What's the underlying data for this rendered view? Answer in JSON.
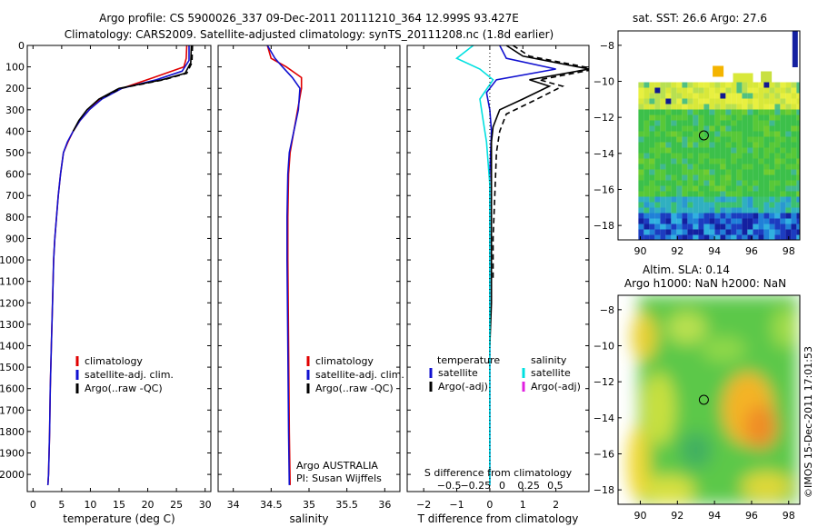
{
  "header": {
    "line1": "Argo profile: CS 5900026_337 09-Dec-2011 20111210_364 12.999S 93.427E",
    "line2": "Climatology: CARS2009. Satellite-adjusted climatology: synTS_20111208.nc (1.8d earlier)"
  },
  "colors": {
    "climatology": "#e00000",
    "satellite": "#1010d0",
    "argo": "#000000",
    "salinity_sat": "#00e0e0",
    "salinity_argo": "#e020e0"
  },
  "chart_data": [
    {
      "type": "line",
      "id": "temperature",
      "xlabel": "temperature (deg C)",
      "ylabel": "",
      "xlim": [
        -1,
        31
      ],
      "ylim": [
        2080,
        0
      ],
      "x_ticks": [
        0,
        5,
        10,
        15,
        20,
        25,
        30
      ],
      "y_ticks": [
        0,
        100,
        200,
        300,
        400,
        500,
        600,
        700,
        800,
        900,
        1000,
        1100,
        1200,
        1300,
        1400,
        1500,
        1600,
        1700,
        1800,
        1900,
        2000
      ],
      "legend": [
        "climatology",
        "satellite-adj. clim.",
        "Argo(..raw -QC)"
      ],
      "legend_position": "lower-center",
      "series": [
        {
          "name": "climatology",
          "color": "#e00000",
          "dash": false,
          "x": [
            26.8,
            26.7,
            26.3,
            21.0,
            15.5,
            11.8,
            9.8,
            8.2,
            7.0,
            6.1,
            5.3,
            4.8,
            4.4,
            4.1,
            3.8,
            3.6,
            3.4,
            3.2,
            3.0,
            2.9,
            2.8,
            2.7,
            2.6
          ],
          "y": [
            0,
            60,
            100,
            150,
            200,
            250,
            300,
            350,
            400,
            450,
            500,
            600,
            700,
            800,
            900,
            1000,
            1200,
            1400,
            1600,
            1800,
            1900,
            2000,
            2050
          ]
        },
        {
          "name": "satellite-adj. clim.",
          "color": "#1010d0",
          "dash": false,
          "x": [
            27.2,
            27.2,
            26.0,
            21.5,
            15.5,
            12.0,
            9.8,
            8.2,
            7.0,
            6.0,
            5.3,
            4.8,
            4.4,
            4.1,
            3.8,
            3.6,
            3.4,
            3.2,
            3.0,
            2.9,
            2.8,
            2.7,
            2.6
          ],
          "y": [
            0,
            70,
            120,
            160,
            200,
            250,
            300,
            350,
            400,
            450,
            500,
            600,
            700,
            800,
            900,
            1000,
            1200,
            1400,
            1600,
            1800,
            1900,
            2000,
            2050
          ]
        },
        {
          "name": "Argo(..raw -QC)",
          "color": "#000000",
          "dash": false,
          "x": [
            27.6,
            27.5,
            26.5,
            22.5,
            15.0,
            11.5,
            9.4,
            8.0,
            7.0
          ],
          "y": [
            0,
            80,
            130,
            160,
            200,
            250,
            300,
            350,
            400
          ]
        },
        {
          "name": "Argo raw",
          "color": "#000000",
          "dash": true,
          "x": [
            27.8,
            27.7,
            26.8,
            22.8,
            15.3,
            11.8
          ],
          "y": [
            0,
            80,
            130,
            160,
            200,
            250
          ]
        }
      ]
    },
    {
      "type": "line",
      "id": "salinity",
      "xlabel": "salinity",
      "ylabel": "",
      "xlim": [
        33.8,
        36.2
      ],
      "ylim": [
        2080,
        0
      ],
      "x_ticks": [
        34,
        34.5,
        35,
        35.5,
        36
      ],
      "x_tick_labels": [
        "34",
        "34.5",
        "35",
        "35.5",
        "36"
      ],
      "legend": [
        "climatology",
        "satellite-adj. clim.",
        "Argo(..raw -QC)"
      ],
      "legend_position": "lower-right",
      "annotation": [
        "Argo AUSTRALIA",
        "PI: Susan Wijffels"
      ],
      "series": [
        {
          "name": "climatology",
          "color": "#e00000",
          "dash": false,
          "x": [
            34.45,
            34.5,
            34.7,
            34.9,
            34.9,
            34.85,
            34.8,
            34.75,
            34.73,
            34.72,
            34.72,
            34.73,
            34.74,
            34.75
          ],
          "y": [
            0,
            60,
            100,
            150,
            200,
            300,
            400,
            500,
            600,
            800,
            1000,
            1400,
            1800,
            2050
          ]
        },
        {
          "name": "satellite-adj. clim.",
          "color": "#1010d0",
          "dash": false,
          "x": [
            34.45,
            34.55,
            34.65,
            34.78,
            34.88,
            34.86,
            34.8,
            34.74,
            34.72,
            34.71,
            34.71,
            34.72,
            34.73,
            34.74
          ],
          "y": [
            0,
            60,
            100,
            150,
            200,
            300,
            400,
            500,
            600,
            800,
            1000,
            1400,
            1800,
            2050
          ]
        }
      ]
    },
    {
      "type": "line",
      "id": "difference",
      "xlabel": "T difference from climatology",
      "xlabel_top": "S difference from climatology",
      "ylabel": "",
      "xlim": [
        -2.5,
        3
      ],
      "ylim": [
        2080,
        0
      ],
      "x_ticks": [
        -2,
        -1,
        0,
        1,
        2
      ],
      "x_tick_labels": [
        "−2",
        "−1",
        "0",
        "1",
        "2"
      ],
      "s_ticks": [
        -0.5,
        -0.25,
        0,
        0.25,
        0.5
      ],
      "s_tick_labels": [
        "−0.5",
        "−0.25",
        "0",
        "0.25",
        "0.5"
      ],
      "legend_left_title": "temperature",
      "legend_right_title": "salinity",
      "legend_left": [
        "satellite",
        "Argo(-adj)"
      ],
      "legend_right": [
        "satellite",
        "Argo(-adj)"
      ],
      "series": [
        {
          "name": "T satellite",
          "color": "#1010d0",
          "dash": false,
          "x": [
            0.3,
            0.5,
            2.0,
            0.2,
            -0.1,
            0.0,
            0.05,
            0.0,
            0.0,
            0.0,
            0.0,
            0.0,
            0.0
          ],
          "y": [
            0,
            60,
            110,
            160,
            220,
            300,
            400,
            600,
            900,
            1200,
            1500,
            1800,
            2050
          ]
        },
        {
          "name": "T Argo(-adj)",
          "color": "#000000",
          "dash": false,
          "x": [
            0.5,
            1.0,
            3.0,
            1.2,
            1.8,
            1.0,
            0.3,
            0.1,
            0.05,
            0.05,
            0.05,
            0.05,
            0.05,
            0.0
          ],
          "y": [
            0,
            50,
            110,
            160,
            190,
            250,
            300,
            380,
            450,
            600,
            800,
            1000,
            1200,
            1400
          ]
        },
        {
          "name": "T Argo raw",
          "color": "#000000",
          "dash": true,
          "x": [
            0.7,
            1.2,
            3.2,
            1.5,
            2.2,
            1.3,
            0.5,
            0.3,
            0.2,
            0.15,
            0.1,
            0.1
          ],
          "y": [
            0,
            50,
            110,
            160,
            190,
            260,
            320,
            400,
            500,
            700,
            900,
            1100
          ]
        },
        {
          "name": "S satellite",
          "color": "#00e0e0",
          "dash": false,
          "x": [
            -0.5,
            -1.0,
            -0.3,
            0.1,
            -0.3,
            -0.2,
            -0.1,
            -0.05,
            0.0,
            0.0,
            0.0,
            0.0,
            0.0,
            0.0
          ],
          "y": [
            0,
            60,
            110,
            160,
            250,
            350,
            450,
            550,
            650,
            800,
            1000,
            1400,
            1800,
            2050
          ]
        }
      ]
    },
    {
      "type": "heatmap",
      "id": "sst-map",
      "title": "sat. SST: 26.6  Argo: 27.6",
      "x_ticks": [
        90,
        92,
        94,
        96,
        98
      ],
      "y_ticks": [
        -8,
        -10,
        -12,
        -14,
        -16,
        -18
      ],
      "xlim": [
        88.8,
        98.6
      ],
      "ylim": [
        -18.8,
        -7.2
      ],
      "argo_position": [
        93.427,
        -12.999
      ]
    },
    {
      "type": "heatmap",
      "id": "sla-map",
      "title": [
        "Altim. SLA: 0.14",
        "Argo h1000: NaN h2000: NaN"
      ],
      "x_ticks": [
        90,
        92,
        94,
        96,
        98
      ],
      "y_ticks": [
        -8,
        -10,
        -12,
        -14,
        -16,
        -18
      ],
      "xlim": [
        88.8,
        98.6
      ],
      "ylim": [
        -18.8,
        -7.2
      ],
      "argo_position": [
        93.427,
        -12.999
      ]
    }
  ],
  "footer": {
    "credit": "©IMOS 15-Dec-2011 17:01:53"
  }
}
